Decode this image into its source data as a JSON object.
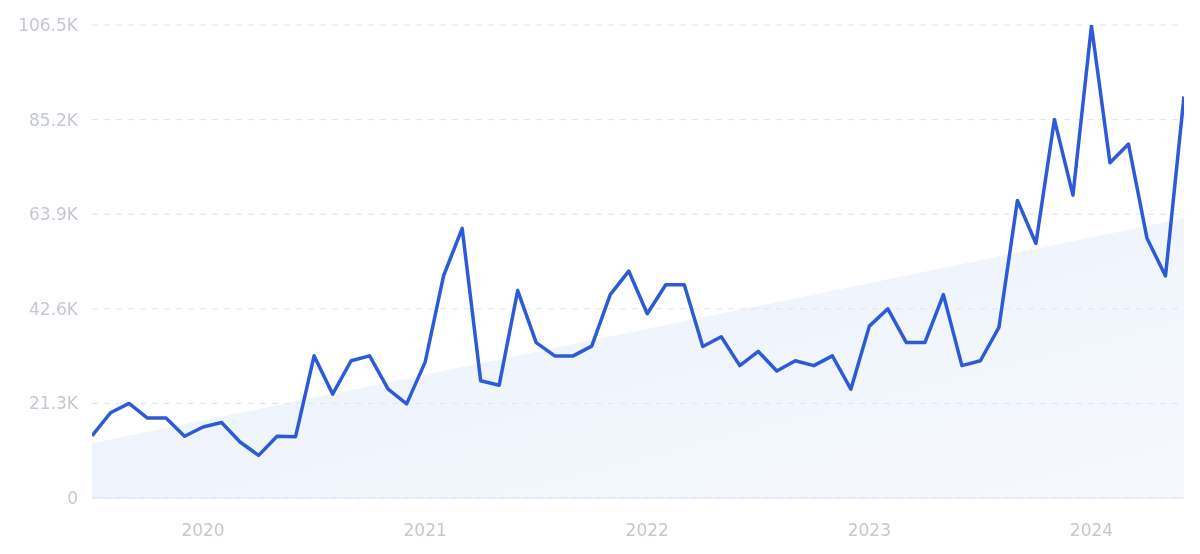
{
  "chart_data": {
    "type": "line",
    "xlim": [
      "2019-07",
      "2024-06"
    ],
    "xticks": [
      "2020",
      "2021",
      "2022",
      "2023",
      "2024"
    ],
    "ylim": [
      0,
      106500
    ],
    "yticks": [
      0,
      {
        "value": 21300,
        "label": "21.3K"
      },
      {
        "value": 42600,
        "label": "42.6K"
      },
      {
        "value": 63900,
        "label": "63.9K"
      },
      {
        "value": 85200,
        "label": "85.2K"
      },
      {
        "value": 106500,
        "label": "106.5K"
      }
    ],
    "grid": "y",
    "line_style": "solid",
    "marker": "none",
    "x": [
      "2019-07",
      "2019-08",
      "2019-09",
      "2019-10",
      "2019-11",
      "2019-12",
      "2020-01",
      "2020-02",
      "2020-03",
      "2020-04",
      "2020-05",
      "2020-06",
      "2020-07",
      "2020-08",
      "2020-09",
      "2020-10",
      "2020-11",
      "2020-12",
      "2021-01",
      "2021-02",
      "2021-03",
      "2021-04",
      "2021-05",
      "2021-06",
      "2021-07",
      "2021-08",
      "2021-09",
      "2021-10",
      "2021-11",
      "2021-12",
      "2022-01",
      "2022-02",
      "2022-03",
      "2022-04",
      "2022-05",
      "2022-06",
      "2022-07",
      "2022-08",
      "2022-09",
      "2022-10",
      "2022-11",
      "2022-12",
      "2023-01",
      "2023-02",
      "2023-03",
      "2023-04",
      "2023-05",
      "2023-06",
      "2023-07",
      "2023-08",
      "2023-09",
      "2023-10",
      "2023-11",
      "2023-12",
      "2024-01",
      "2024-02",
      "2024-03",
      "2024-04",
      "2024-05",
      "2024-06"
    ],
    "series": [
      {
        "type": "area",
        "color": "#dce8fa",
        "x": [
          "2019-07",
          "2024-06"
        ],
        "values": [
          12300,
          63000
        ]
      },
      {
        "color": "#2d5bd7",
        "values": [
          14000,
          19200,
          21300,
          18000,
          18000,
          13900,
          16000,
          17000,
          12600,
          9600,
          13900,
          13800,
          32000,
          23400,
          30900,
          32000,
          24500,
          21200,
          30600,
          50100,
          60700,
          26400,
          25400,
          46700,
          35000,
          32000,
          32000,
          34200,
          45800,
          51100,
          41500,
          48000,
          48000,
          34100,
          36300,
          29800,
          33000,
          28600,
          30900,
          29800,
          32000,
          24500,
          38700,
          42600,
          35000,
          35000,
          45800,
          29800,
          30900,
          38400,
          67000,
          57300,
          85200,
          68200,
          106300,
          75500,
          79700,
          58500,
          50000,
          90400
        ]
      }
    ]
  }
}
